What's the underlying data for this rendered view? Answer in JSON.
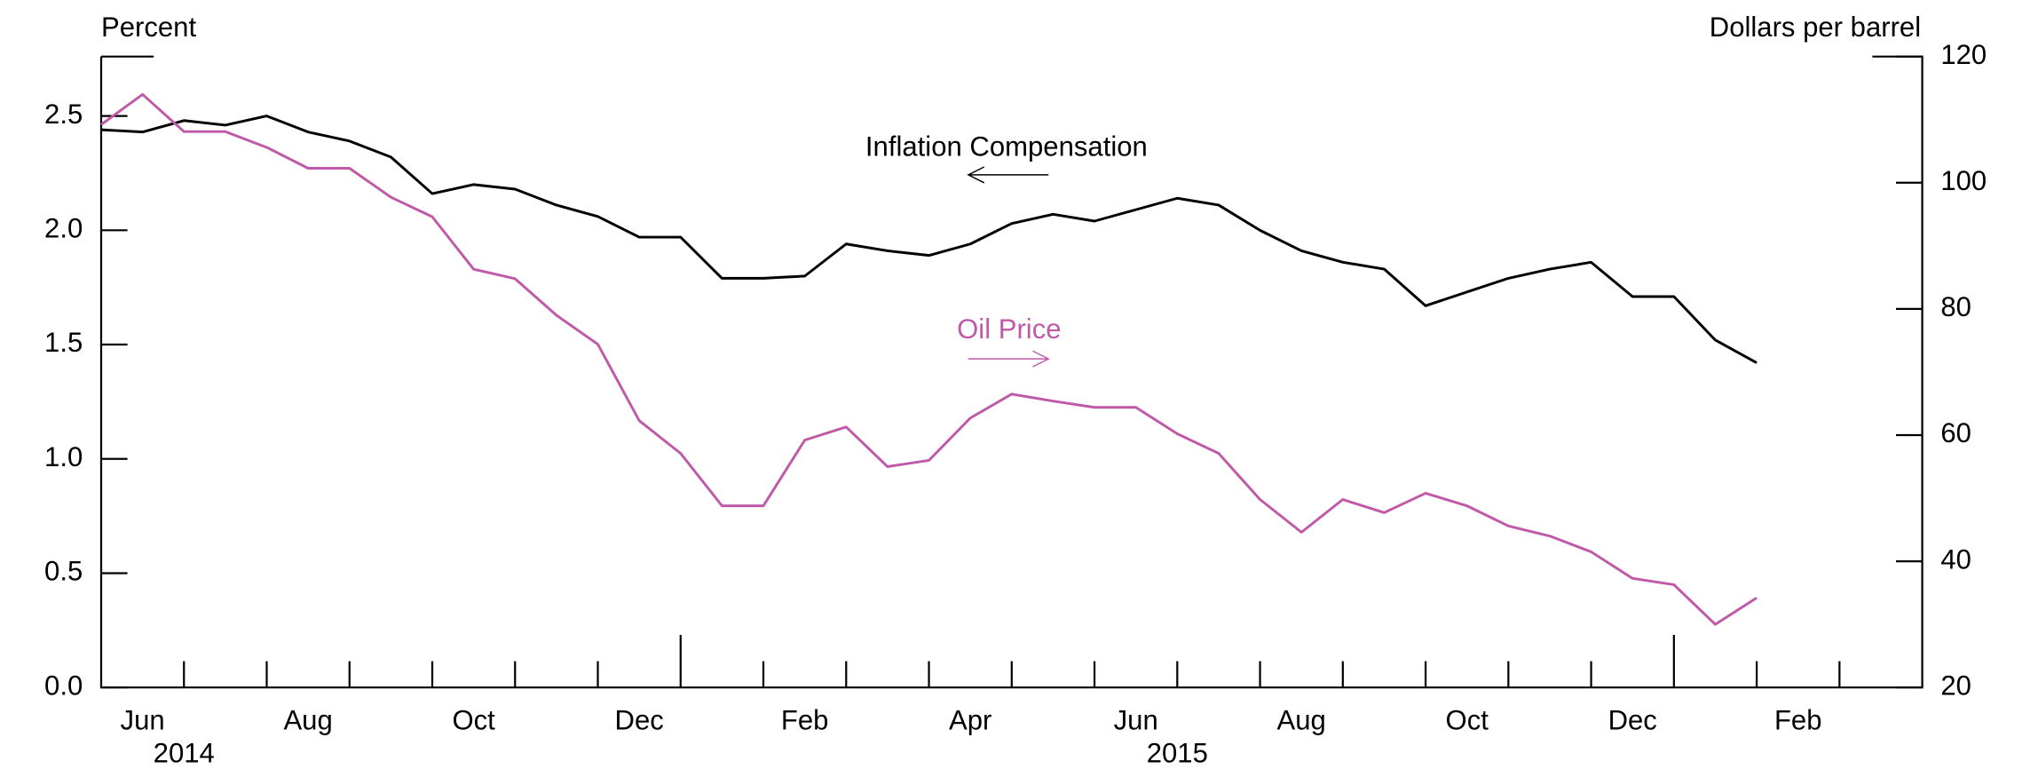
{
  "chart_data": {
    "type": "line",
    "y_label": "Percent",
    "y2_label": "Dollars per barrel",
    "categories": [
      null,
      "Jun",
      null,
      null,
      null,
      "Aug",
      null,
      null,
      null,
      "Oct",
      null,
      null,
      null,
      "Dec",
      null,
      null,
      null,
      "Feb",
      null,
      null,
      null,
      "Apr",
      null,
      null,
      null,
      "Jun",
      null,
      null,
      null,
      "Aug",
      null,
      null,
      null,
      "Oct",
      null,
      null,
      null,
      "Dec",
      null,
      null,
      null,
      "Feb",
      null,
      null,
      null
    ],
    "years": [
      "2014",
      "2015"
    ],
    "series": [
      {
        "name": "Inflation Compensation",
        "color": "#000000",
        "axis": "y",
        "values": [
          2.44,
          2.43,
          2.48,
          2.46,
          2.5,
          2.43,
          2.39,
          2.32,
          2.16,
          2.2,
          2.18,
          2.11,
          2.06,
          1.97,
          1.97,
          1.79,
          1.79,
          1.8,
          1.94,
          1.91,
          1.89,
          1.94,
          2.03,
          2.07,
          2.04,
          2.09,
          2.14,
          2.11,
          2.0,
          1.91,
          1.86,
          1.83,
          1.67,
          1.73,
          1.79,
          1.83,
          1.86,
          1.71,
          1.71,
          1.52,
          1.42,
          null,
          null,
          null,
          null
        ]
      },
      {
        "name": "Oil Price",
        "color": "#c05aa8",
        "axis": "y2",
        "values": [
          109.2,
          114.0,
          108.1,
          108.1,
          105.6,
          102.3,
          102.3,
          97.7,
          94.6,
          86.3,
          84.8,
          79.0,
          74.4,
          62.3,
          57.1,
          48.8,
          48.8,
          59.2,
          61.3,
          55.0,
          56.0,
          62.7,
          66.5,
          65.4,
          64.4,
          64.4,
          60.2,
          57.1,
          49.8,
          44.6,
          49.8,
          47.7,
          50.8,
          48.8,
          45.6,
          44.0,
          41.5,
          37.3,
          36.3,
          30.0,
          34.2,
          null,
          null,
          null,
          null
        ]
      }
    ],
    "ylim": [
      0,
      2.76
    ],
    "yticks": [
      {
        "value": 0,
        "label": "0.0"
      },
      0.5,
      {
        "value": 1,
        "label": "1.0"
      },
      1.5,
      {
        "value": 2,
        "label": "2.0"
      },
      2.5
    ],
    "y2lim": [
      20,
      120
    ],
    "y2ticks": [
      20,
      40,
      60,
      80,
      100,
      120
    ]
  }
}
